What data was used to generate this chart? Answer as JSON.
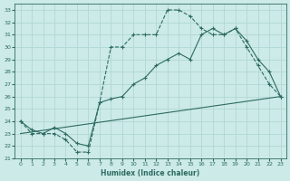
{
  "background_color": "#cceae7",
  "grid_color": "#b0d8d4",
  "line_color": "#2d6b60",
  "xlabel": "Humidex (Indice chaleur)",
  "xlim": [
    -0.5,
    23.5
  ],
  "ylim": [
    21,
    33.5
  ],
  "xticks": [
    0,
    1,
    2,
    3,
    4,
    5,
    6,
    7,
    8,
    9,
    10,
    11,
    12,
    13,
    14,
    15,
    16,
    17,
    18,
    19,
    20,
    21,
    22,
    23
  ],
  "yticks": [
    21,
    22,
    23,
    24,
    25,
    26,
    27,
    28,
    29,
    30,
    31,
    32,
    33
  ],
  "line1_x": [
    0,
    1,
    2,
    3,
    4,
    5,
    6,
    7,
    8,
    9,
    10,
    11,
    12,
    13,
    14,
    15,
    16,
    17,
    18,
    19,
    20,
    21,
    22,
    23
  ],
  "line1_y": [
    24,
    23,
    23,
    23,
    22.5,
    21.5,
    21.5,
    25.5,
    30,
    30,
    31,
    31,
    31,
    33,
    33,
    32.5,
    31.5,
    31,
    31,
    31.5,
    30,
    28.5,
    27,
    26
  ],
  "line2_x": [
    0,
    1,
    2,
    3,
    4,
    5,
    6,
    7,
    8,
    9,
    10,
    11,
    12,
    13,
    14,
    15,
    16,
    17,
    18,
    19,
    20,
    21,
    22,
    23
  ],
  "line2_y": [
    24,
    23.3,
    23,
    23.5,
    23,
    22.2,
    22,
    25.5,
    25.8,
    26,
    27,
    27.5,
    28.5,
    29,
    29.5,
    29,
    31,
    31.5,
    31,
    31.5,
    30.5,
    29,
    28,
    26
  ],
  "line3_x": [
    0,
    23
  ],
  "line3_y": [
    23,
    26
  ]
}
